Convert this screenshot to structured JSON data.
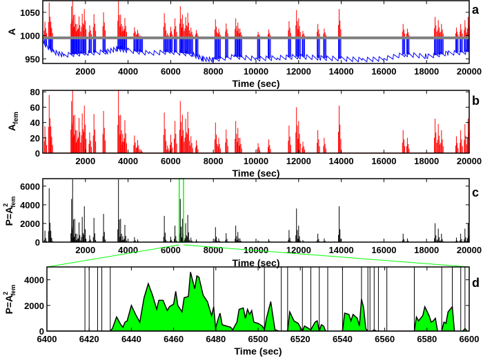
{
  "chart_data": [
    {
      "panel": "a",
      "type": "line",
      "ylabel": "A",
      "xlabel": "Time (sec)",
      "xlim": [
        0,
        20000
      ],
      "ylim": [
        940,
        1075
      ],
      "xticks": [
        2000,
        4000,
        6000,
        8000,
        10000,
        12000,
        14000,
        16000,
        18000,
        20000
      ],
      "yticks": [
        950,
        1000,
        1050
      ],
      "threshold": 995,
      "colors": {
        "below": "#0000ff",
        "above": "#ff0000",
        "threshold": "#808080"
      },
      "baseline": [
        [
          0,
          985
        ],
        [
          500,
          965
        ],
        [
          1000,
          958
        ],
        [
          2000,
          962
        ],
        [
          3000,
          965
        ],
        [
          3500,
          972
        ],
        [
          4000,
          968
        ],
        [
          5000,
          962
        ],
        [
          6000,
          965
        ],
        [
          7000,
          960
        ],
        [
          7500,
          950
        ],
        [
          8000,
          948
        ],
        [
          9000,
          955
        ],
        [
          10000,
          950
        ],
        [
          11000,
          952
        ],
        [
          12000,
          955
        ],
        [
          13000,
          952
        ],
        [
          14000,
          950
        ],
        [
          15000,
          948
        ],
        [
          16000,
          950
        ],
        [
          17000,
          960
        ],
        [
          18000,
          955
        ],
        [
          19000,
          962
        ],
        [
          20000,
          965
        ]
      ]
    },
    {
      "panel": "b",
      "type": "bar",
      "ylabel": "A_fem",
      "xlabel": "Time (sec)",
      "xlim": [
        0,
        20000
      ],
      "ylim": [
        0,
        82
      ],
      "xticks": [
        2000,
        4000,
        6000,
        8000,
        10000,
        12000,
        14000,
        16000,
        18000,
        20000
      ],
      "yticks": [
        0,
        20,
        40,
        60,
        80
      ],
      "color": "#ff0000",
      "bursts": [
        [
          100,
          35
        ],
        [
          300,
          76
        ],
        [
          380,
          35
        ],
        [
          1350,
          68
        ],
        [
          1400,
          82
        ],
        [
          1500,
          50
        ],
        [
          1600,
          30
        ],
        [
          1700,
          46
        ],
        [
          1850,
          52
        ],
        [
          1950,
          62
        ],
        [
          2200,
          27
        ],
        [
          2400,
          51
        ],
        [
          2850,
          55
        ],
        [
          3550,
          82
        ],
        [
          3650,
          50
        ],
        [
          3750,
          25
        ],
        [
          3850,
          43
        ],
        [
          4300,
          23
        ],
        [
          4450,
          17
        ],
        [
          4600,
          5
        ],
        [
          5700,
          53
        ],
        [
          5850,
          10
        ],
        [
          6000,
          24
        ],
        [
          6200,
          42
        ],
        [
          6450,
          68
        ],
        [
          6550,
          50
        ],
        [
          6700,
          45
        ],
        [
          6800,
          54
        ],
        [
          6950,
          22
        ],
        [
          7200,
          17
        ],
        [
          8100,
          40
        ],
        [
          8250,
          20
        ],
        [
          8600,
          31
        ],
        [
          9050,
          42
        ],
        [
          9150,
          33
        ],
        [
          9250,
          20
        ],
        [
          10100,
          13
        ],
        [
          10600,
          18
        ],
        [
          11550,
          36
        ],
        [
          11900,
          60
        ],
        [
          12000,
          42
        ],
        [
          12200,
          15
        ],
        [
          12900,
          30
        ],
        [
          13200,
          20
        ],
        [
          13900,
          62
        ],
        [
          16900,
          30
        ],
        [
          17100,
          20
        ],
        [
          18400,
          45
        ],
        [
          18550,
          38
        ],
        [
          18700,
          30
        ],
        [
          19400,
          22
        ],
        [
          19600,
          30
        ],
        [
          19800,
          38
        ],
        [
          19950,
          45
        ]
      ]
    },
    {
      "panel": "c",
      "type": "bar",
      "ylabel": "P=A_fem^2",
      "xlabel": "Time (sec)",
      "xlim": [
        0,
        20000
      ],
      "ylim": [
        0,
        6800
      ],
      "xticks": [
        2000,
        4000,
        6000,
        8000,
        10000,
        12000,
        14000,
        16000,
        18000,
        20000
      ],
      "yticks": [
        0,
        2000,
        4000,
        6000
      ],
      "color": "#000000",
      "zoom_window": [
        6400,
        6600
      ],
      "zoom_color": "#00ff00"
    },
    {
      "panel": "d",
      "type": "area",
      "ylabel": "P=A_fem^2",
      "xlabel": "Time (sec)",
      "xlim": [
        6400,
        6600
      ],
      "ylim": [
        0,
        5000
      ],
      "xticks": [
        6400,
        6420,
        6440,
        6460,
        6480,
        6500,
        6520,
        6540,
        6560,
        6580,
        6600
      ],
      "yticks": [
        0,
        2000,
        4000
      ],
      "fill": "#00ff00",
      "segments": [
        [
          [
            6430,
            0
          ],
          [
            6431,
            200
          ],
          [
            6433,
            1100
          ],
          [
            6435,
            500
          ],
          [
            6436,
            300
          ],
          [
            6437,
            700
          ],
          [
            6438,
            800
          ],
          [
            6440,
            2000
          ],
          [
            6442,
            1300
          ],
          [
            6444,
            700
          ],
          [
            6446,
            2600
          ],
          [
            6448,
            3700
          ],
          [
            6450,
            2800
          ],
          [
            6452,
            1700
          ],
          [
            6453,
            2400
          ],
          [
            6455,
            2400
          ],
          [
            6457,
            1600
          ],
          [
            6458,
            1900
          ],
          [
            6460,
            2100
          ],
          [
            6461,
            3100
          ],
          [
            6462,
            2000
          ],
          [
            6464,
            1500
          ],
          [
            6465,
            2600
          ],
          [
            6467,
            2700
          ],
          [
            6468,
            4600
          ],
          [
            6470,
            3300
          ],
          [
            6471,
            4300
          ],
          [
            6472,
            4200
          ],
          [
            6474,
            2800
          ],
          [
            6476,
            2300
          ],
          [
            6478,
            1200
          ],
          [
            6479,
            1900
          ],
          [
            6480,
            0
          ]
        ],
        [
          [
            6480,
            0
          ],
          [
            6480,
            300
          ],
          [
            6481,
            900
          ],
          [
            6482,
            1400
          ],
          [
            6483,
            500
          ],
          [
            6485,
            400
          ],
          [
            6487,
            300
          ],
          [
            6488,
            100
          ],
          [
            6490,
            700
          ],
          [
            6491,
            1700
          ],
          [
            6493,
            1800
          ],
          [
            6494,
            1000
          ],
          [
            6495,
            1700
          ],
          [
            6496,
            1300
          ],
          [
            6497,
            1600
          ],
          [
            6498,
            700
          ],
          [
            6500,
            600
          ],
          [
            6502,
            400
          ],
          [
            6503,
            100
          ],
          [
            6504,
            1000
          ],
          [
            6506,
            2300
          ],
          [
            6507,
            1200
          ],
          [
            6508,
            100
          ],
          [
            6510,
            0
          ]
        ],
        [
          [
            6514,
            0
          ],
          [
            6515,
            1500
          ],
          [
            6517,
            800
          ],
          [
            6519,
            600
          ],
          [
            6520,
            300
          ],
          [
            6521,
            0
          ],
          [
            6522,
            400
          ],
          [
            6524,
            200
          ],
          [
            6525,
            100
          ],
          [
            6527,
            700
          ],
          [
            6528,
            800
          ],
          [
            6529,
            0
          ],
          [
            6530,
            500
          ],
          [
            6531,
            400
          ],
          [
            6532,
            0
          ]
        ],
        [
          [
            6540,
            0
          ],
          [
            6541,
            1400
          ],
          [
            6543,
            1300
          ],
          [
            6544,
            800
          ],
          [
            6545,
            1300
          ],
          [
            6547,
            1000
          ],
          [
            6548,
            400
          ],
          [
            6549,
            2500
          ],
          [
            6550,
            1800
          ],
          [
            6551,
            200
          ],
          [
            6552,
            0
          ]
        ],
        [
          [
            6554,
            0
          ],
          [
            6555,
            100
          ],
          [
            6556,
            0
          ]
        ],
        [
          [
            6574,
            0
          ],
          [
            6575,
            1100
          ],
          [
            6576,
            800
          ],
          [
            6578,
            1200
          ],
          [
            6579,
            1900
          ],
          [
            6581,
            1200
          ],
          [
            6582,
            700
          ],
          [
            6583,
            800
          ],
          [
            6584,
            1000
          ],
          [
            6585,
            0
          ]
        ],
        [
          [
            6587,
            0
          ],
          [
            6588,
            700
          ],
          [
            6589,
            600
          ],
          [
            6590,
            1500
          ],
          [
            6592,
            1900
          ],
          [
            6593,
            0
          ]
        ],
        [
          [
            6597,
            0
          ],
          [
            6598,
            200
          ],
          [
            6599,
            0
          ]
        ]
      ],
      "vlines": [
        6418,
        6420,
        6424,
        6426,
        6430,
        6479,
        6503,
        6511,
        6514,
        6521,
        6525,
        6529,
        6533,
        6540,
        6549,
        6552,
        6553,
        6555,
        6557,
        6561,
        6574,
        6587,
        6592,
        6596,
        6598
      ]
    }
  ],
  "labels": {
    "a": "a",
    "b": "b",
    "c": "c",
    "d": "d",
    "time": "Time (sec)",
    "A": "A",
    "Afem_base": "A",
    "Afem_sub": "fem",
    "P_base": "P=A",
    "P_sup": "2",
    "P_sub": "fem"
  }
}
